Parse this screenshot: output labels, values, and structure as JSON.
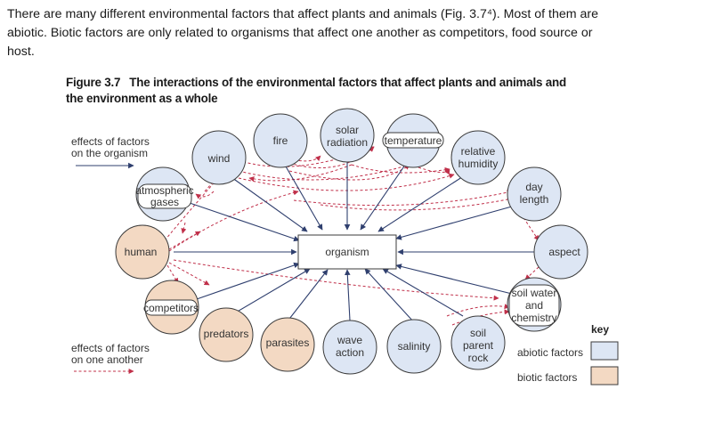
{
  "intro": {
    "line1": "There are many different environmental factors that affect plants and animals (Fig. 3.7⁴). Most of them are",
    "line2": "abiotic. Biotic factors are only related to organisms that affect one another as competitors, food source or",
    "line3": "host."
  },
  "figure": {
    "number": "Figure 3.7",
    "title_line1": "The interactions of the environmental factors that affect plants and animals and",
    "title_line2": "the environment as a whole"
  },
  "legend_left": {
    "effects_on_organism_1": "effects of factors",
    "effects_on_organism_2": "on the organism",
    "effects_on_one_another_1": "effects of factors",
    "effects_on_one_another_2": "on one another"
  },
  "center": {
    "label": "organism"
  },
  "nodes": {
    "wind": "wind",
    "fire": "fire",
    "solar_1": "solar",
    "solar_2": "radiation",
    "temperature": "temperature",
    "humidity_1": "relative",
    "humidity_2": "humidity",
    "day_1": "day",
    "day_2": "length",
    "aspect": "aspect",
    "soil_water_1": "soil water",
    "soil_water_2": "and",
    "soil_water_3": "chemistry",
    "soil_rock_1": "soil",
    "soil_rock_2": "parent",
    "soil_rock_3": "rock",
    "salinity": "salinity",
    "wave_1": "wave",
    "wave_2": "action",
    "parasites": "parasites",
    "predators": "predators",
    "competitors": "competitors",
    "human": "human",
    "atmos_1": "atmospheric",
    "atmos_2": "gases"
  },
  "key": {
    "title": "key",
    "abiotic": "abiotic factors",
    "biotic": "biotic factors"
  },
  "colors": {
    "abiotic_fill": "#dde6f4",
    "biotic_fill": "#f3d9c3",
    "node_stroke": "#3b3b3b",
    "solid_arrow": "#2f3f6e",
    "dashed_arrow": "#c0304a"
  }
}
